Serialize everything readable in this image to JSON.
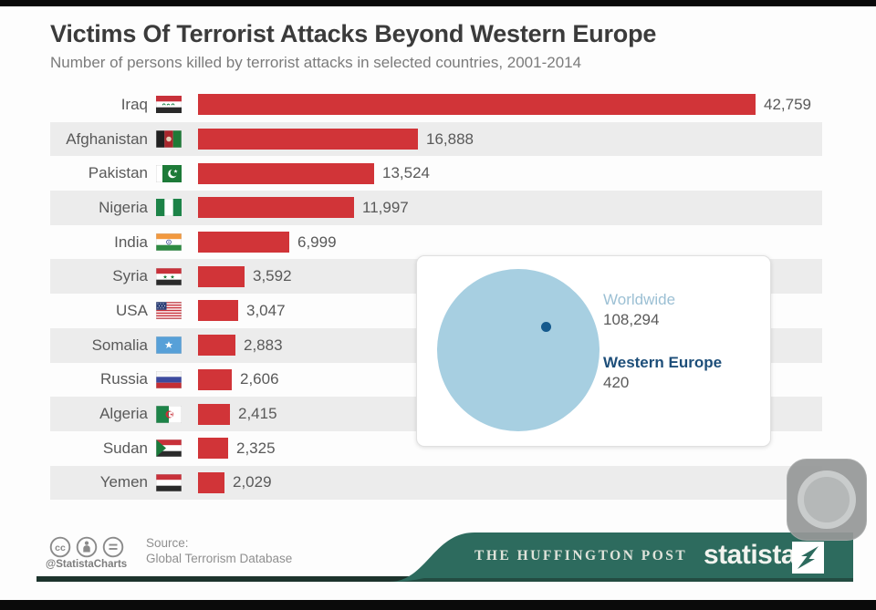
{
  "header": {
    "title": "Victims Of Terrorist Attacks Beyond Western Europe",
    "subtitle": "Number of persons killed by terrorist attacks in selected countries, 2001-2014"
  },
  "chart_data": {
    "type": "bar",
    "orientation": "horizontal",
    "title": "Victims Of Terrorist Attacks Beyond Western Europe",
    "subtitle": "Number of persons killed by terrorist attacks in selected countries, 2001-2014",
    "categories": [
      "Iraq",
      "Afghanistan",
      "Pakistan",
      "Nigeria",
      "India",
      "Syria",
      "USA",
      "Somalia",
      "Russia",
      "Algeria",
      "Sudan",
      "Yemen"
    ],
    "values": [
      42759,
      16888,
      13524,
      11997,
      6999,
      3592,
      3047,
      2883,
      2606,
      2415,
      2325,
      2029
    ],
    "labels": [
      "42,759",
      "16,888",
      "13,524",
      "11,997",
      "6,999",
      "3,592",
      "3,047",
      "2,883",
      "2,606",
      "2,415",
      "2,325",
      "2,029"
    ],
    "xlim": [
      0,
      42759
    ],
    "grid": false,
    "legend_position": "none",
    "bar_color": "#d13438",
    "row_stripe_color": "#ececec",
    "inset": {
      "worldwide": {
        "label": "Worldwide",
        "value": 108294,
        "value_label": "108,294"
      },
      "western_europe": {
        "label": "Western Europe",
        "value": 420,
        "value_label": "420"
      },
      "circle_color": "#a7cfe1",
      "dot_color": "#155a8d"
    }
  },
  "footer": {
    "license_icons": [
      "cc-icon",
      "attribution-person-icon",
      "no-derivatives-equals-icon"
    ],
    "handle": "@StatistaCharts",
    "source_label": "Source:",
    "source_name": "Global Terrorism Database",
    "publisher": "THE HUFFINGTON POST",
    "brand": "statista",
    "banner_color": "#2d6b5e"
  },
  "overlay": {
    "button_icon": "camera-shutter-icon"
  }
}
